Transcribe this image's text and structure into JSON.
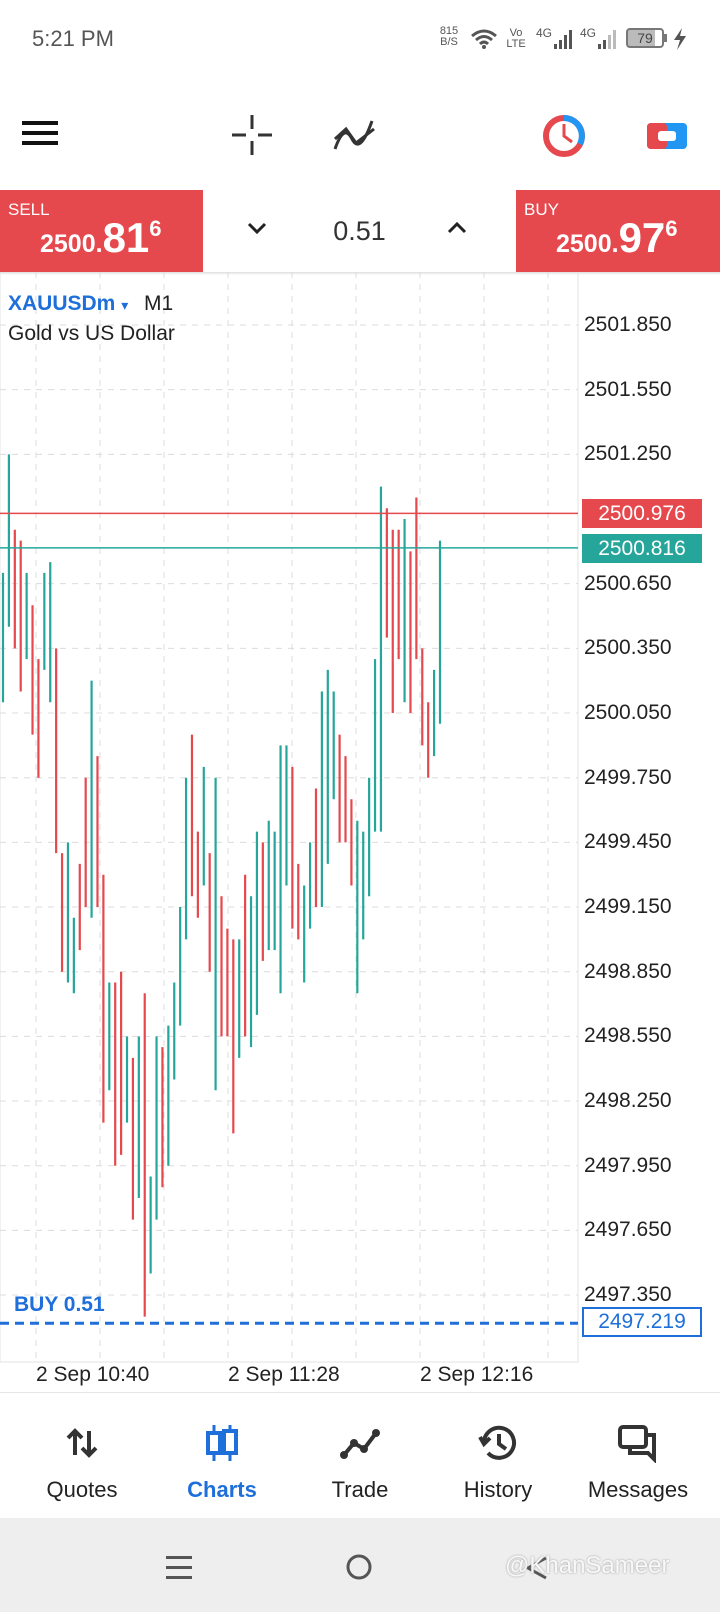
{
  "status_bar": {
    "time": "5:21 PM",
    "net_speed": "815",
    "net_unit": "B/S",
    "volte_top": "Vo",
    "volte_bottom": "LTE",
    "net1": "4G",
    "net2": "4G",
    "battery": "79"
  },
  "toolbar": {
    "timeframe": "M1",
    "icons": [
      "menu-icon",
      "crosshair-icon",
      "indicators-icon",
      "timeframe-button",
      "clock-icon",
      "one-click-trading-icon"
    ]
  },
  "trade_panel": {
    "sell_label": "SELL",
    "sell_price_small": "2500.",
    "sell_price_big": "81",
    "sell_price_sup": "6",
    "volume": "0.51",
    "buy_label": "BUY",
    "buy_price_small": "2500.",
    "buy_price_big": "97",
    "buy_price_sup": "6"
  },
  "chart": {
    "symbol": "XAUUSDm",
    "symbol_arrow": "▾",
    "timeframe": "M1",
    "description": "Gold vs US Dollar",
    "ask_tag": "2500.976",
    "bid_tag": "2500.816",
    "order_label": "BUY 0.51",
    "order_price": "2497.219",
    "colors": {
      "up": "#26a69a",
      "down": "#e5484d",
      "order": "#1e6fd9"
    }
  },
  "chart_data": {
    "type": "ohlc",
    "yticks": [
      "2501.850",
      "2501.550",
      "2501.250",
      "2500.650",
      "2500.350",
      "2500.050",
      "2499.750",
      "2499.450",
      "2499.150",
      "2498.850",
      "2498.550",
      "2498.250",
      "2497.950",
      "2497.650",
      "2497.350"
    ],
    "xticks": [
      "2 Sep 10:40",
      "2 Sep 11:28",
      "2 Sep 12:16"
    ],
    "ylim": [
      2497.2,
      2502.0
    ],
    "grid": true,
    "ask": 2500.976,
    "bid": 2500.816,
    "order_price": 2497.219,
    "bars": [
      {
        "h": 2500.7,
        "l": 2500.1,
        "up": true
      },
      {
        "h": 2501.25,
        "l": 2500.45,
        "up": true
      },
      {
        "h": 2500.9,
        "l": 2500.35,
        "up": false
      },
      {
        "h": 2500.85,
        "l": 2500.15,
        "up": false
      },
      {
        "h": 2500.7,
        "l": 2500.3,
        "up": true
      },
      {
        "h": 2500.55,
        "l": 2499.95,
        "up": false
      },
      {
        "h": 2500.3,
        "l": 2499.75,
        "up": false
      },
      {
        "h": 2500.7,
        "l": 2500.25,
        "up": true
      },
      {
        "h": 2500.75,
        "l": 2500.1,
        "up": true
      },
      {
        "h": 2500.35,
        "l": 2499.4,
        "up": false
      },
      {
        "h": 2499.4,
        "l": 2498.85,
        "up": false
      },
      {
        "h": 2499.45,
        "l": 2498.8,
        "up": true
      },
      {
        "h": 2499.1,
        "l": 2498.75,
        "up": true
      },
      {
        "h": 2499.35,
        "l": 2498.95,
        "up": false
      },
      {
        "h": 2499.75,
        "l": 2499.15,
        "up": false
      },
      {
        "h": 2500.2,
        "l": 2499.1,
        "up": true
      },
      {
        "h": 2499.85,
        "l": 2499.15,
        "up": false
      },
      {
        "h": 2499.3,
        "l": 2498.15,
        "up": false
      },
      {
        "h": 2498.8,
        "l": 2498.3,
        "up": true
      },
      {
        "h": 2498.8,
        "l": 2497.95,
        "up": false
      },
      {
        "h": 2498.85,
        "l": 2498.0,
        "up": false
      },
      {
        "h": 2498.55,
        "l": 2498.15,
        "up": true
      },
      {
        "h": 2498.45,
        "l": 2497.7,
        "up": false
      },
      {
        "h": 2498.55,
        "l": 2497.8,
        "up": true
      },
      {
        "h": 2498.75,
        "l": 2497.25,
        "up": false
      },
      {
        "h": 2497.9,
        "l": 2497.45,
        "up": true
      },
      {
        "h": 2498.55,
        "l": 2497.7,
        "up": true
      },
      {
        "h": 2498.5,
        "l": 2497.85,
        "up": false
      },
      {
        "h": 2498.6,
        "l": 2497.95,
        "up": true
      },
      {
        "h": 2498.8,
        "l": 2498.35,
        "up": true
      },
      {
        "h": 2499.15,
        "l": 2498.6,
        "up": true
      },
      {
        "h": 2499.75,
        "l": 2499.0,
        "up": true
      },
      {
        "h": 2499.95,
        "l": 2499.2,
        "up": false
      },
      {
        "h": 2499.5,
        "l": 2499.1,
        "up": false
      },
      {
        "h": 2499.8,
        "l": 2499.25,
        "up": true
      },
      {
        "h": 2499.4,
        "l": 2498.85,
        "up": false
      },
      {
        "h": 2499.75,
        "l": 2498.3,
        "up": true
      },
      {
        "h": 2499.2,
        "l": 2498.55,
        "up": false
      },
      {
        "h": 2499.05,
        "l": 2498.55,
        "up": false
      },
      {
        "h": 2499.0,
        "l": 2498.1,
        "up": false
      },
      {
        "h": 2499.0,
        "l": 2498.45,
        "up": true
      },
      {
        "h": 2499.3,
        "l": 2498.55,
        "up": false
      },
      {
        "h": 2499.2,
        "l": 2498.5,
        "up": true
      },
      {
        "h": 2499.5,
        "l": 2498.65,
        "up": true
      },
      {
        "h": 2499.45,
        "l": 2498.9,
        "up": false
      },
      {
        "h": 2499.55,
        "l": 2498.95,
        "up": true
      },
      {
        "h": 2499.5,
        "l": 2498.95,
        "up": true
      },
      {
        "h": 2499.9,
        "l": 2498.75,
        "up": true
      },
      {
        "h": 2499.9,
        "l": 2499.25,
        "up": true
      },
      {
        "h": 2499.8,
        "l": 2499.05,
        "up": false
      },
      {
        "h": 2499.35,
        "l": 2499.0,
        "up": false
      },
      {
        "h": 2499.25,
        "l": 2498.8,
        "up": true
      },
      {
        "h": 2499.45,
        "l": 2499.05,
        "up": true
      },
      {
        "h": 2499.7,
        "l": 2499.15,
        "up": false
      },
      {
        "h": 2500.15,
        "l": 2499.15,
        "up": true
      },
      {
        "h": 2500.25,
        "l": 2499.35,
        "up": true
      },
      {
        "h": 2500.15,
        "l": 2499.65,
        "up": true
      },
      {
        "h": 2499.95,
        "l": 2499.45,
        "up": false
      },
      {
        "h": 2499.85,
        "l": 2499.45,
        "up": false
      },
      {
        "h": 2499.65,
        "l": 2499.25,
        "up": false
      },
      {
        "h": 2499.55,
        "l": 2498.75,
        "up": true
      },
      {
        "h": 2499.5,
        "l": 2499.0,
        "up": true
      },
      {
        "h": 2499.75,
        "l": 2499.2,
        "up": true
      },
      {
        "h": 2500.3,
        "l": 2499.5,
        "up": true
      },
      {
        "h": 2501.1,
        "l": 2499.5,
        "up": true
      },
      {
        "h": 2501.0,
        "l": 2500.4,
        "up": false
      },
      {
        "h": 2500.9,
        "l": 2500.05,
        "up": false
      },
      {
        "h": 2500.9,
        "l": 2500.3,
        "up": false
      },
      {
        "h": 2500.95,
        "l": 2500.1,
        "up": true
      },
      {
        "h": 2500.8,
        "l": 2500.05,
        "up": false
      },
      {
        "h": 2501.05,
        "l": 2500.3,
        "up": false
      },
      {
        "h": 2500.35,
        "l": 2499.9,
        "up": false
      },
      {
        "h": 2500.1,
        "l": 2499.75,
        "up": false
      },
      {
        "h": 2500.25,
        "l": 2499.85,
        "up": true
      },
      {
        "h": 2500.85,
        "l": 2500.0,
        "up": true
      }
    ]
  },
  "bottom_nav": {
    "quotes": "Quotes",
    "charts": "Charts",
    "trade": "Trade",
    "history": "History",
    "messages": "Messages"
  },
  "watermark": "@KhanSameer"
}
